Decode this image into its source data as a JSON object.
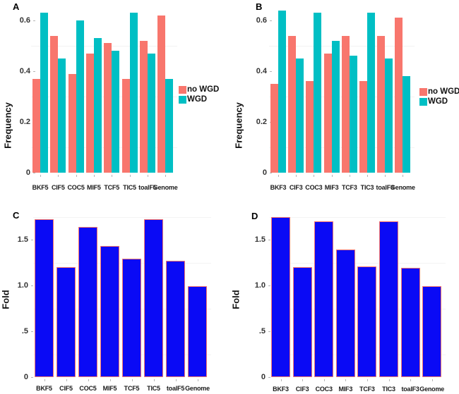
{
  "chart_data": [
    {
      "panel_label": "A",
      "type": "bar",
      "grouped": true,
      "ylabel": "Frequency",
      "xlabel": "",
      "ylim": [
        0,
        0.65
      ],
      "yticks": [
        {
          "label": "0.6",
          "value": 0.6
        },
        {
          "label": "0.4",
          "value": 0.4
        },
        {
          "label": "0.2",
          "value": 0.2
        },
        {
          "label": "0",
          "value": 0
        }
      ],
      "categories": [
        "BKF5",
        "CIF5",
        "COC5",
        "MIF5",
        "TCF5",
        "TIC5",
        "toalF5",
        "Genome"
      ],
      "series": [
        {
          "name": "no WGD",
          "color": "#F8766D",
          "values": [
            0.37,
            0.54,
            0.39,
            0.47,
            0.51,
            0.37,
            0.52,
            0.62
          ]
        },
        {
          "name": "WGD",
          "color": "#00BFC4",
          "values": [
            0.63,
            0.45,
            0.6,
            0.53,
            0.48,
            0.63,
            0.47,
            0.37
          ]
        }
      ],
      "legend": {
        "position": "right",
        "items": [
          {
            "label": "no WGD",
            "color": "#F8766D"
          },
          {
            "label": "WGD",
            "color": "#00BFC4"
          }
        ]
      }
    },
    {
      "panel_label": "B",
      "type": "bar",
      "grouped": true,
      "ylabel": "Frequency",
      "xlabel": "",
      "ylim": [
        0,
        0.65
      ],
      "yticks": [
        {
          "label": "0.6",
          "value": 0.6
        },
        {
          "label": "0.4",
          "value": 0.4
        },
        {
          "label": "0.2",
          "value": 0.2
        },
        {
          "label": "0",
          "value": 0
        }
      ],
      "categories": [
        "BKF3",
        "CIF3",
        "COC3",
        "MIF3",
        "TCF3",
        "TIC3",
        "toalF3",
        "Genome"
      ],
      "series": [
        {
          "name": "no WGD",
          "color": "#F8766D",
          "values": [
            0.35,
            0.54,
            0.36,
            0.47,
            0.54,
            0.36,
            0.54,
            0.61
          ]
        },
        {
          "name": "WGD",
          "color": "#00BFC4",
          "values": [
            0.64,
            0.45,
            0.63,
            0.52,
            0.46,
            0.63,
            0.45,
            0.38
          ]
        }
      ],
      "legend": {
        "position": "right",
        "items": [
          {
            "label": "no WGD",
            "color": "#F8766D"
          },
          {
            "label": "WGD",
            "color": "#00BFC4"
          }
        ]
      }
    },
    {
      "panel_label": "C",
      "type": "bar",
      "grouped": false,
      "ylabel": "Fold",
      "xlabel": "",
      "ylim": [
        0,
        1.8
      ],
      "yticks": [
        {
          "label": "1.5",
          "value": 1.5
        },
        {
          "label": "1.0",
          "value": 1.0
        },
        {
          "label": ".5",
          "value": 0.5
        },
        {
          "label": "0",
          "value": 0
        }
      ],
      "categories": [
        "BKF5",
        "CIF5",
        "COC5",
        "MIF5",
        "TCF5",
        "TIC5",
        "toalF5",
        "Genome"
      ],
      "series": [
        {
          "name": "Fold",
          "color": "#0A0AF5",
          "border": "#F8766D",
          "values": [
            1.72,
            1.2,
            1.64,
            1.43,
            1.29,
            1.72,
            1.27,
            0.99
          ]
        }
      ],
      "legend": null
    },
    {
      "panel_label": "D",
      "type": "bar",
      "grouped": false,
      "ylabel": "Fold",
      "xlabel": "",
      "ylim": [
        0,
        1.8
      ],
      "yticks": [
        {
          "label": "1.5",
          "value": 1.5
        },
        {
          "label": "1.0",
          "value": 1.0
        },
        {
          "label": ".5",
          "value": 0.5
        },
        {
          "label": "0",
          "value": 0
        }
      ],
      "categories": [
        "BKF3",
        "CIF3",
        "COC3",
        "MIF3",
        "TCF3",
        "TIC3",
        "toalF3",
        "Genome"
      ],
      "series": [
        {
          "name": "Fold",
          "color": "#0A0AF5",
          "border": "#F8766D",
          "values": [
            1.75,
            1.2,
            1.7,
            1.39,
            1.21,
            1.7,
            1.19,
            0.99
          ]
        }
      ],
      "legend": null
    }
  ]
}
